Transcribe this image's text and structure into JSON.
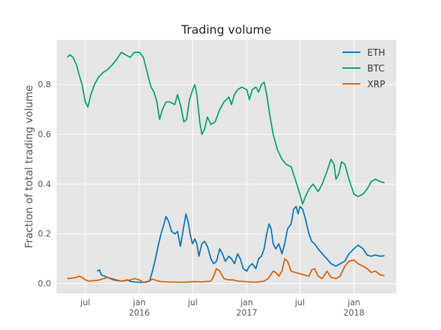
{
  "chart_data": {
    "type": "line",
    "title": "Trading volume",
    "xlabel": "",
    "ylabel": "Fraction of total trading volume",
    "xlim": [
      "2015-03-25",
      "2018-05-25"
    ],
    "ylim": [
      -0.04,
      0.98
    ],
    "grid": true,
    "legend": "top-right",
    "y_ticks": [
      "0.0",
      "0.2",
      "0.4",
      "0.6",
      "0.8"
    ],
    "x_ticks": [
      {
        "date": "2015-07-01",
        "label": "jul",
        "year": ""
      },
      {
        "date": "2016-01-01",
        "label": "jan",
        "year": "2016"
      },
      {
        "date": "2016-07-01",
        "label": "jul",
        "year": ""
      },
      {
        "date": "2017-01-01",
        "label": "jan",
        "year": "2017"
      },
      {
        "date": "2017-07-01",
        "label": "jul",
        "year": ""
      },
      {
        "date": "2018-01-01",
        "label": "jan",
        "year": "2018"
      }
    ],
    "series": [
      {
        "name": "ETH",
        "color": "#0072B2",
        "points": [
          [
            "2015-08-10",
            0.05
          ],
          [
            "2015-08-18",
            0.055
          ],
          [
            "2015-08-25",
            0.035
          ],
          [
            "2015-09-05",
            0.03
          ],
          [
            "2015-09-15",
            0.025
          ],
          [
            "2015-09-25",
            0.02
          ],
          [
            "2015-10-05",
            0.015
          ],
          [
            "2015-10-20",
            0.012
          ],
          [
            "2015-11-05",
            0.01
          ],
          [
            "2015-11-20",
            0.015
          ],
          [
            "2015-12-05",
            0.008
          ],
          [
            "2015-12-20",
            0.006
          ],
          [
            "2016-01-05",
            0.005
          ],
          [
            "2016-01-20",
            0.005
          ],
          [
            "2016-02-05",
            0.01
          ],
          [
            "2016-02-15",
            0.05
          ],
          [
            "2016-02-25",
            0.1
          ],
          [
            "2016-03-05",
            0.15
          ],
          [
            "2016-03-15",
            0.2
          ],
          [
            "2016-03-25",
            0.24
          ],
          [
            "2016-04-01",
            0.27
          ],
          [
            "2016-04-10",
            0.25
          ],
          [
            "2016-04-20",
            0.21
          ],
          [
            "2016-05-01",
            0.2
          ],
          [
            "2016-05-10",
            0.21
          ],
          [
            "2016-05-20",
            0.15
          ],
          [
            "2016-05-30",
            0.22
          ],
          [
            "2016-06-08",
            0.28
          ],
          [
            "2016-06-15",
            0.25
          ],
          [
            "2016-06-22",
            0.2
          ],
          [
            "2016-06-30",
            0.16
          ],
          [
            "2016-07-08",
            0.18
          ],
          [
            "2016-07-15",
            0.16
          ],
          [
            "2016-07-22",
            0.11
          ],
          [
            "2016-08-01",
            0.16
          ],
          [
            "2016-08-10",
            0.17
          ],
          [
            "2016-08-20",
            0.15
          ],
          [
            "2016-09-01",
            0.1
          ],
          [
            "2016-09-10",
            0.08
          ],
          [
            "2016-09-20",
            0.09
          ],
          [
            "2016-10-01",
            0.14
          ],
          [
            "2016-10-10",
            0.12
          ],
          [
            "2016-10-20",
            0.09
          ],
          [
            "2016-11-01",
            0.11
          ],
          [
            "2016-11-10",
            0.1
          ],
          [
            "2016-11-20",
            0.08
          ],
          [
            "2016-12-01",
            0.12
          ],
          [
            "2016-12-10",
            0.1
          ],
          [
            "2016-12-20",
            0.06
          ],
          [
            "2017-01-01",
            0.05
          ],
          [
            "2017-01-10",
            0.07
          ],
          [
            "2017-01-20",
            0.08
          ],
          [
            "2017-02-01",
            0.06
          ],
          [
            "2017-02-10",
            0.1
          ],
          [
            "2017-02-20",
            0.11
          ],
          [
            "2017-03-01",
            0.14
          ],
          [
            "2017-03-10",
            0.2
          ],
          [
            "2017-03-18",
            0.24
          ],
          [
            "2017-03-25",
            0.22
          ],
          [
            "2017-04-01",
            0.16
          ],
          [
            "2017-04-10",
            0.14
          ],
          [
            "2017-04-20",
            0.16
          ],
          [
            "2017-05-01",
            0.12
          ],
          [
            "2017-05-10",
            0.16
          ],
          [
            "2017-05-20",
            0.22
          ],
          [
            "2017-06-01",
            0.24
          ],
          [
            "2017-06-10",
            0.3
          ],
          [
            "2017-06-18",
            0.31
          ],
          [
            "2017-06-25",
            0.28
          ],
          [
            "2017-07-01",
            0.31
          ],
          [
            "2017-07-10",
            0.3
          ],
          [
            "2017-07-20",
            0.26
          ],
          [
            "2017-08-01",
            0.2
          ],
          [
            "2017-08-10",
            0.17
          ],
          [
            "2017-08-20",
            0.16
          ],
          [
            "2017-09-01",
            0.14
          ],
          [
            "2017-09-15",
            0.12
          ],
          [
            "2017-10-01",
            0.1
          ],
          [
            "2017-10-15",
            0.08
          ],
          [
            "2017-11-01",
            0.07
          ],
          [
            "2017-11-15",
            0.08
          ],
          [
            "2017-12-01",
            0.09
          ],
          [
            "2017-12-15",
            0.12
          ],
          [
            "2018-01-01",
            0.14
          ],
          [
            "2018-01-15",
            0.155
          ],
          [
            "2018-02-01",
            0.14
          ],
          [
            "2018-02-15",
            0.115
          ],
          [
            "2018-03-01",
            0.11
          ],
          [
            "2018-03-15",
            0.115
          ],
          [
            "2018-04-01",
            0.11
          ],
          [
            "2018-04-15",
            0.112
          ]
        ]
      },
      {
        "name": "BTC",
        "color": "#009E73",
        "points": [
          [
            "2015-05-01",
            0.91
          ],
          [
            "2015-05-10",
            0.92
          ],
          [
            "2015-05-20",
            0.91
          ],
          [
            "2015-06-01",
            0.88
          ],
          [
            "2015-06-10",
            0.84
          ],
          [
            "2015-06-20",
            0.8
          ],
          [
            "2015-07-01",
            0.73
          ],
          [
            "2015-07-10",
            0.71
          ],
          [
            "2015-07-20",
            0.76
          ],
          [
            "2015-08-01",
            0.8
          ],
          [
            "2015-08-15",
            0.83
          ],
          [
            "2015-09-01",
            0.85
          ],
          [
            "2015-09-15",
            0.86
          ],
          [
            "2015-10-01",
            0.88
          ],
          [
            "2015-10-15",
            0.9
          ],
          [
            "2015-11-01",
            0.93
          ],
          [
            "2015-11-15",
            0.92
          ],
          [
            "2015-12-01",
            0.91
          ],
          [
            "2015-12-15",
            0.93
          ],
          [
            "2016-01-01",
            0.93
          ],
          [
            "2016-01-15",
            0.91
          ],
          [
            "2016-02-01",
            0.83
          ],
          [
            "2016-02-10",
            0.79
          ],
          [
            "2016-02-20",
            0.77
          ],
          [
            "2016-03-01",
            0.73
          ],
          [
            "2016-03-10",
            0.66
          ],
          [
            "2016-03-20",
            0.7
          ],
          [
            "2016-04-01",
            0.73
          ],
          [
            "2016-04-15",
            0.73
          ],
          [
            "2016-05-01",
            0.72
          ],
          [
            "2016-05-10",
            0.76
          ],
          [
            "2016-05-20",
            0.72
          ],
          [
            "2016-06-01",
            0.65
          ],
          [
            "2016-06-10",
            0.66
          ],
          [
            "2016-06-20",
            0.74
          ],
          [
            "2016-07-01",
            0.78
          ],
          [
            "2016-07-08",
            0.8
          ],
          [
            "2016-07-15",
            0.76
          ],
          [
            "2016-07-25",
            0.65
          ],
          [
            "2016-08-01",
            0.6
          ],
          [
            "2016-08-10",
            0.62
          ],
          [
            "2016-08-20",
            0.67
          ],
          [
            "2016-09-01",
            0.64
          ],
          [
            "2016-09-15",
            0.65
          ],
          [
            "2016-10-01",
            0.7
          ],
          [
            "2016-10-15",
            0.73
          ],
          [
            "2016-11-01",
            0.75
          ],
          [
            "2016-11-10",
            0.72
          ],
          [
            "2016-11-20",
            0.76
          ],
          [
            "2016-12-01",
            0.78
          ],
          [
            "2016-12-15",
            0.79
          ],
          [
            "2017-01-01",
            0.78
          ],
          [
            "2017-01-10",
            0.74
          ],
          [
            "2017-01-20",
            0.78
          ],
          [
            "2017-02-01",
            0.79
          ],
          [
            "2017-02-10",
            0.77
          ],
          [
            "2017-02-20",
            0.8
          ],
          [
            "2017-03-01",
            0.81
          ],
          [
            "2017-03-10",
            0.76
          ],
          [
            "2017-03-20",
            0.68
          ],
          [
            "2017-04-01",
            0.6
          ],
          [
            "2017-04-15",
            0.54
          ],
          [
            "2017-05-01",
            0.5
          ],
          [
            "2017-05-15",
            0.48
          ],
          [
            "2017-06-01",
            0.47
          ],
          [
            "2017-06-15",
            0.42
          ],
          [
            "2017-07-01",
            0.36
          ],
          [
            "2017-07-10",
            0.32
          ],
          [
            "2017-07-20",
            0.35
          ],
          [
            "2017-08-01",
            0.38
          ],
          [
            "2017-08-15",
            0.4
          ],
          [
            "2017-09-01",
            0.37
          ],
          [
            "2017-09-15",
            0.4
          ],
          [
            "2017-10-01",
            0.45
          ],
          [
            "2017-10-15",
            0.5
          ],
          [
            "2017-10-25",
            0.48
          ],
          [
            "2017-11-01",
            0.42
          ],
          [
            "2017-11-10",
            0.44
          ],
          [
            "2017-11-20",
            0.49
          ],
          [
            "2017-12-01",
            0.48
          ],
          [
            "2017-12-15",
            0.42
          ],
          [
            "2018-01-01",
            0.36
          ],
          [
            "2018-01-15",
            0.35
          ],
          [
            "2018-02-01",
            0.36
          ],
          [
            "2018-02-15",
            0.38
          ],
          [
            "2018-03-01",
            0.41
          ],
          [
            "2018-03-15",
            0.42
          ],
          [
            "2018-04-01",
            0.41
          ],
          [
            "2018-04-15",
            0.405
          ]
        ]
      },
      {
        "name": "XRP",
        "color": "#D55E00",
        "points": [
          [
            "2015-05-01",
            0.02
          ],
          [
            "2015-05-15",
            0.022
          ],
          [
            "2015-06-01",
            0.025
          ],
          [
            "2015-06-10",
            0.03
          ],
          [
            "2015-06-20",
            0.025
          ],
          [
            "2015-07-01",
            0.015
          ],
          [
            "2015-07-15",
            0.01
          ],
          [
            "2015-08-01",
            0.012
          ],
          [
            "2015-08-15",
            0.014
          ],
          [
            "2015-09-01",
            0.02
          ],
          [
            "2015-09-15",
            0.025
          ],
          [
            "2015-10-01",
            0.02
          ],
          [
            "2015-10-15",
            0.015
          ],
          [
            "2015-11-01",
            0.01
          ],
          [
            "2015-11-15",
            0.012
          ],
          [
            "2015-12-01",
            0.015
          ],
          [
            "2015-12-15",
            0.02
          ],
          [
            "2016-01-01",
            0.015
          ],
          [
            "2016-01-15",
            0.005
          ],
          [
            "2016-02-01",
            0.01
          ],
          [
            "2016-02-15",
            0.018
          ],
          [
            "2016-03-01",
            0.012
          ],
          [
            "2016-03-15",
            0.008
          ],
          [
            "2016-04-01",
            0.007
          ],
          [
            "2016-05-01",
            0.006
          ],
          [
            "2016-06-01",
            0.006
          ],
          [
            "2016-07-01",
            0.008
          ],
          [
            "2016-08-01",
            0.007
          ],
          [
            "2016-09-01",
            0.01
          ],
          [
            "2016-09-10",
            0.03
          ],
          [
            "2016-09-20",
            0.06
          ],
          [
            "2016-10-01",
            0.05
          ],
          [
            "2016-10-15",
            0.02
          ],
          [
            "2016-11-01",
            0.015
          ],
          [
            "2016-11-15",
            0.015
          ],
          [
            "2016-12-01",
            0.01
          ],
          [
            "2017-01-01",
            0.008
          ],
          [
            "2017-02-01",
            0.006
          ],
          [
            "2017-03-01",
            0.01
          ],
          [
            "2017-03-15",
            0.02
          ],
          [
            "2017-04-01",
            0.05
          ],
          [
            "2017-04-10",
            0.045
          ],
          [
            "2017-04-20",
            0.03
          ],
          [
            "2017-05-01",
            0.05
          ],
          [
            "2017-05-10",
            0.1
          ],
          [
            "2017-05-20",
            0.09
          ],
          [
            "2017-06-01",
            0.05
          ],
          [
            "2017-06-15",
            0.045
          ],
          [
            "2017-07-01",
            0.04
          ],
          [
            "2017-07-15",
            0.035
          ],
          [
            "2017-08-01",
            0.03
          ],
          [
            "2017-08-10",
            0.055
          ],
          [
            "2017-08-20",
            0.06
          ],
          [
            "2017-09-01",
            0.03
          ],
          [
            "2017-09-15",
            0.02
          ],
          [
            "2017-10-01",
            0.05
          ],
          [
            "2017-10-15",
            0.025
          ],
          [
            "2017-11-01",
            0.02
          ],
          [
            "2017-11-15",
            0.03
          ],
          [
            "2017-12-01",
            0.07
          ],
          [
            "2017-12-15",
            0.09
          ],
          [
            "2018-01-01",
            0.095
          ],
          [
            "2018-01-15",
            0.08
          ],
          [
            "2018-02-01",
            0.07
          ],
          [
            "2018-02-15",
            0.06
          ],
          [
            "2018-03-01",
            0.045
          ],
          [
            "2018-03-15",
            0.05
          ],
          [
            "2018-04-01",
            0.035
          ],
          [
            "2018-04-15",
            0.033
          ]
        ]
      }
    ]
  }
}
